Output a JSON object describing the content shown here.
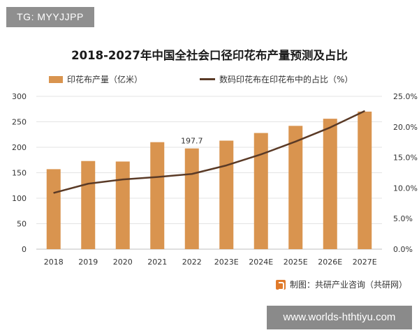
{
  "tag": "TG: MYYJJPP",
  "footer_url": "www.worlds-hthtiyu.com",
  "source_text": "制图：共研产业咨询（共研网）",
  "colors": {
    "bar": "#d9944f",
    "line": "#5a3a26",
    "grid": "#e3e3e3"
  },
  "chart_data": {
    "type": "bar",
    "title": "2018-2027年中国全社会口径印花布产量预测及占比",
    "categories": [
      "2018",
      "2019",
      "2020",
      "2021",
      "2022",
      "2023E",
      "2024E",
      "2025E",
      "2026E",
      "2027E"
    ],
    "series": [
      {
        "name": "印花布产量（亿米）",
        "type": "bar",
        "axis": "left",
        "values": [
          157,
          173,
          172,
          210,
          197.7,
          213,
          228,
          242,
          256,
          270
        ]
      },
      {
        "name": "数码印花布在印花布中的占比（%）",
        "type": "line",
        "axis": "right",
        "values": [
          9.2,
          10.7,
          11.4,
          11.8,
          12.3,
          13.7,
          15.5,
          17.6,
          19.9,
          22.6
        ]
      }
    ],
    "data_labels": [
      {
        "category": "2022",
        "text": "197.7"
      }
    ],
    "y_left": {
      "lim": [
        0,
        300
      ],
      "ticks": [
        "0",
        "50",
        "100",
        "150",
        "200",
        "250",
        "300"
      ]
    },
    "y_right": {
      "lim": [
        0,
        25
      ],
      "ticks": [
        "0.0%",
        "5.0%",
        "10.0%",
        "15.0%",
        "20.0%",
        "25.0%"
      ]
    },
    "grid": true,
    "legend": "top"
  }
}
